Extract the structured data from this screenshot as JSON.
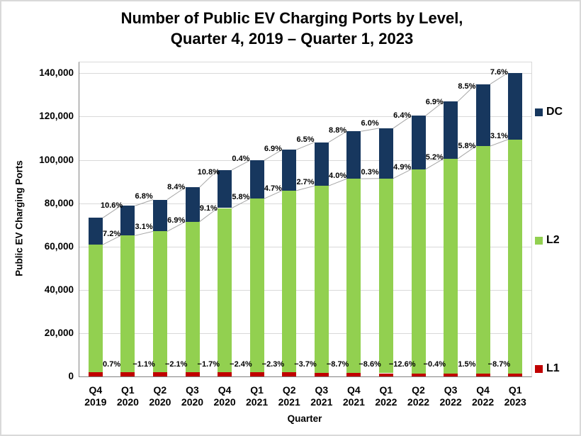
{
  "title": {
    "line1": "Number of Public EV Charging Ports by Level,",
    "line2": "Quarter 4, 2019 – Quarter 1, 2023"
  },
  "y_axis": {
    "title": "Public EV Charging Ports",
    "ticks": [
      {
        "label": "0",
        "value": 0
      },
      {
        "label": "20,000",
        "value": 20000
      },
      {
        "label": "40,000",
        "value": 40000
      },
      {
        "label": "60,000",
        "value": 60000
      },
      {
        "label": "80,000",
        "value": 80000
      },
      {
        "label": "100,000",
        "value": 100000
      },
      {
        "label": "120,000",
        "value": 120000
      },
      {
        "label": "140,000",
        "value": 140000
      }
    ]
  },
  "x_axis": {
    "title": "Quarter"
  },
  "legend": {
    "position": "right",
    "items": [
      {
        "label": "DC",
        "color": "#17375E"
      },
      {
        "label": "L2",
        "color": "#92D050"
      },
      {
        "label": "L1",
        "color": "#C00000"
      }
    ]
  },
  "chart_data": {
    "type": "bar",
    "stacked": true,
    "title": "Number of Public EV Charging Ports by Level, Quarter 4, 2019 – Quarter 1, 2023",
    "xlabel": "Quarter",
    "ylabel": "Public EV Charging Ports",
    "ylim": [
      0,
      145000
    ],
    "y_tick_interval": 20000,
    "grid": "horizontal",
    "legend_position": "right",
    "categories": [
      "Q4 2019",
      "Q1 2020",
      "Q2 2020",
      "Q3 2020",
      "Q4 2020",
      "Q1 2021",
      "Q2 2021",
      "Q3 2021",
      "Q4 2021",
      "Q1 2022",
      "Q2 2022",
      "Q3 2022",
      "Q4 2022",
      "Q1 2023"
    ],
    "series": [
      {
        "name": "L1",
        "color": "#C00000",
        "values": [
          2000,
          2010,
          1990,
          1950,
          1920,
          1870,
          1830,
          1760,
          1610,
          1470,
          1280,
          1280,
          1300,
          1190
        ],
        "growth_labels": [
          "0.7%",
          "−1.1%",
          "−2.1%",
          "−1.7%",
          "−2.4%",
          "−2.3%",
          "−3.7%",
          "−8.7%",
          "−8.6%",
          "−12.6%",
          "−0.4%",
          "1.5%",
          "−8.7%"
        ]
      },
      {
        "name": "L2",
        "color": "#92D050",
        "values": [
          58800,
          63030,
          64990,
          69470,
          75790,
          80190,
          83960,
          86230,
          89680,
          89940,
          94350,
          99260,
          105010,
          108270
        ],
        "growth_labels": [
          "7.2%",
          "3.1%",
          "6.9%",
          "9.1%",
          "5.8%",
          "4.7%",
          "2.7%",
          "4.0%",
          "0.3%",
          "4.9%",
          "5.2%",
          "5.8%",
          "3.1%"
        ]
      },
      {
        "name": "DC",
        "color": "#17375E",
        "values": [
          12400,
          13710,
          14650,
          15880,
          17590,
          17660,
          18880,
          20110,
          21880,
          23190,
          24680,
          26380,
          28620,
          30790
        ],
        "growth_labels": [
          "10.6%",
          "6.8%",
          "8.4%",
          "10.8%",
          "0.4%",
          "6.9%",
          "6.5%",
          "8.8%",
          "6.0%",
          "6.4%",
          "6.9%",
          "8.5%",
          "7.6%"
        ]
      }
    ]
  },
  "colors": {
    "background": "#FFFFFF",
    "gridline": "#D9D9D9",
    "axis_line": "#808080",
    "connector_line": "#A6A6A6",
    "text": "#000000"
  }
}
